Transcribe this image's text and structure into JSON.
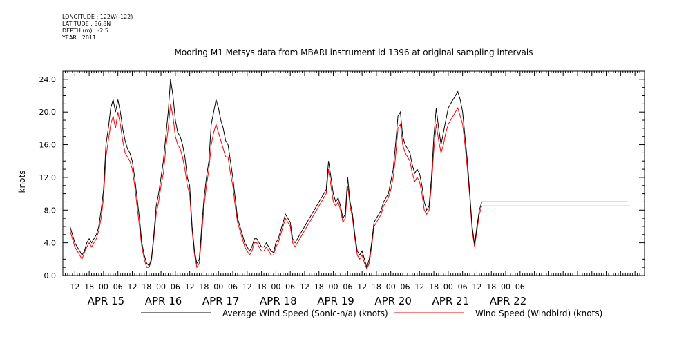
{
  "header": {
    "longitude": "LONGITUDE : 122W(-122)",
    "latitude": "LATITUDE : 36.8N",
    "depth": "DEPTH (m) : -2.5",
    "year": "YEAR : 2011"
  },
  "chart_data": {
    "type": "line",
    "title": "Mooring M1 Metsys data from MBARI instrument id 1396 at original sampling intervals",
    "ylabel": "knots",
    "xlabel": "",
    "ylim": [
      0,
      25
    ],
    "xlim": [
      "APR 14 2011 07:00",
      "APR 22 2011 10:00"
    ],
    "y_ticks": [
      "0.0",
      "4.0",
      "8.0",
      "12.0",
      "16.0",
      "20.0",
      "24.0"
    ],
    "x_hour_ticks": [
      "12",
      "18",
      "00",
      "06",
      "12",
      "18",
      "00",
      "06",
      "12",
      "18",
      "00",
      "06",
      "12",
      "18",
      "00",
      "06",
      "12",
      "18",
      "00",
      "06",
      "12",
      "18",
      "00",
      "06",
      "12",
      "18",
      "00",
      "06",
      "12",
      "18",
      "00",
      "06"
    ],
    "x_day_labels": [
      "APR 15",
      "APR 16",
      "APR 17",
      "APR 18",
      "APR 19",
      "APR 20",
      "APR 21",
      "APR 22"
    ],
    "grid": false,
    "legend": "bottom",
    "series": [
      {
        "name": "Average Wind Speed (Sonic-n/a) (knots)",
        "color": "#000000",
        "x_hours_from_apr15_0000": [
          -14,
          -13,
          -12,
          -11,
          -10,
          -9,
          -8,
          -7,
          -6,
          -5,
          -4,
          -3,
          -2,
          -1,
          0,
          1,
          2,
          3,
          4,
          5,
          6,
          7,
          8,
          9,
          10,
          11,
          12,
          13,
          14,
          15,
          16,
          17,
          18,
          19,
          20,
          21,
          22,
          23,
          24,
          25,
          26,
          27,
          28,
          29,
          30,
          31,
          32,
          33,
          34,
          35,
          36,
          37,
          38,
          39,
          40,
          41,
          42,
          43,
          44,
          45,
          46,
          47,
          48,
          49,
          50,
          51,
          52,
          53,
          54,
          55,
          56,
          57,
          58,
          59,
          60,
          61,
          62,
          63,
          64,
          65,
          66,
          67,
          68,
          69,
          70,
          71,
          72,
          73,
          74,
          75,
          76,
          77,
          78,
          79,
          80,
          81,
          82,
          83,
          84,
          85,
          86,
          87,
          88,
          89,
          90,
          91,
          92,
          93,
          94,
          95,
          96,
          97,
          98,
          99,
          100,
          101,
          102,
          103,
          104,
          105,
          106,
          107,
          108,
          109,
          110,
          111,
          112,
          113,
          114,
          115,
          116,
          117,
          118,
          119,
          120,
          121,
          122,
          123,
          124,
          125,
          126,
          127,
          128,
          129,
          130,
          131,
          132,
          133,
          134,
          135,
          136,
          137,
          138,
          139,
          140,
          141,
          142,
          143,
          144,
          145,
          146,
          147,
          148,
          149,
          150,
          151,
          152,
          153,
          154,
          155,
          156,
          157,
          158,
          159,
          160,
          161,
          162,
          163,
          164,
          165,
          166,
          167,
          168,
          169,
          170,
          171,
          172,
          173,
          174,
          175,
          176,
          177,
          178,
          179,
          180,
          181,
          182,
          183,
          184,
          185,
          186,
          187,
          188,
          189,
          190,
          191,
          192,
          193,
          194,
          195,
          196,
          197,
          198,
          199,
          200,
          201,
          202,
          203,
          204,
          205,
          206,
          207,
          208,
          209,
          210,
          211,
          212,
          213,
          214,
          215,
          216,
          217,
          218,
          219,
          220,
          221,
          222,
          223,
          224,
          225,
          226,
          227,
          228,
          229,
          230,
          231,
          232,
          233,
          234
        ],
        "values": [
          6.0,
          5.0,
          4.0,
          3.5,
          3.0,
          2.5,
          3.0,
          4.0,
          4.5,
          4.0,
          4.5,
          5.0,
          6.0,
          8.0,
          10.5,
          16.0,
          18.0,
          20.5,
          21.5,
          20.0,
          21.5,
          20.0,
          18.0,
          16.5,
          15.5,
          15.0,
          14.0,
          12.0,
          9.5,
          7.0,
          4.0,
          2.5,
          1.5,
          1.2,
          2.0,
          5.0,
          8.5,
          10.0,
          12.0,
          14.0,
          17.0,
          20.0,
          24.0,
          22.0,
          19.0,
          17.5,
          17.0,
          16.0,
          14.5,
          12.0,
          11.0,
          6.0,
          3.0,
          1.5,
          2.0,
          6.0,
          9.5,
          12.0,
          14.0,
          18.5,
          20.0,
          21.5,
          20.5,
          19.0,
          18.0,
          16.5,
          16.0,
          14.0,
          12.0,
          9.5,
          7.0,
          6.0,
          5.0,
          4.0,
          3.5,
          3.0,
          3.5,
          4.5,
          4.5,
          4.0,
          3.5,
          3.5,
          4.0,
          3.5,
          3.0,
          2.8,
          4.0,
          4.5,
          5.5,
          6.5,
          7.5,
          7.0,
          6.5,
          4.5,
          4.0,
          4.5,
          5.0,
          5.5,
          6.0,
          6.5,
          7.0,
          7.5,
          8.0,
          8.5,
          9.0,
          9.5,
          10.0,
          10.5,
          14.0,
          12.0,
          10.0,
          9.0,
          9.5,
          8.5,
          7.0,
          7.5,
          12.0,
          9.0,
          7.5,
          5.0,
          3.0,
          2.5,
          3.0,
          2.0,
          1.0,
          2.0,
          4.0,
          6.5,
          7.0,
          7.5,
          8.0,
          9.0,
          9.5,
          10.0,
          11.5,
          13.0,
          16.0,
          19.5,
          20.0,
          17.0,
          16.0,
          15.5,
          15.0,
          13.5,
          12.5,
          13.0,
          12.5,
          11.0,
          9.0,
          8.0,
          8.5,
          12.0,
          17.0,
          20.5,
          18.0,
          16.0,
          17.5,
          19.0,
          20.5,
          21.0,
          21.5,
          22.0,
          22.5,
          21.5,
          20.0,
          17.0,
          14.0,
          10.0,
          6.0,
          3.8,
          6.0,
          8.0,
          9.0,
          9.0,
          9.0,
          9.0,
          9.0,
          9.0,
          9.0,
          9.0,
          9.0,
          9.0,
          9.0,
          9.0,
          9.0,
          9.0,
          9.0,
          9.0,
          9.0,
          9.0,
          9.0,
          9.0,
          9.0,
          9.0,
          9.0,
          9.0,
          9.0,
          9.0,
          9.0,
          9.0,
          9.0,
          9.0,
          9.0,
          9.0,
          9.0,
          9.0,
          9.0,
          9.0,
          9.0,
          9.0,
          9.0,
          9.0,
          9.0,
          9.0,
          9.0,
          9.0,
          9.0,
          9.0,
          9.0,
          9.0,
          9.0,
          9.0,
          9.0,
          9.0,
          9.0,
          9.0,
          9.0,
          9.0,
          9.0,
          9.0,
          9.0,
          9.0,
          9.0,
          9.0
        ]
      },
      {
        "name": "Wind Speed (Windbird) (knots)",
        "color": "#ff0000",
        "x_hours_from_apr15_0000": [
          -14,
          -13,
          -12,
          -11,
          -10,
          -9,
          -8,
          -7,
          -6,
          -5,
          -4,
          -3,
          -2,
          -1,
          0,
          1,
          2,
          3,
          4,
          5,
          6,
          7,
          8,
          9,
          10,
          11,
          12,
          13,
          14,
          15,
          16,
          17,
          18,
          19,
          20,
          21,
          22,
          23,
          24,
          25,
          26,
          27,
          28,
          29,
          30,
          31,
          32,
          33,
          34,
          35,
          36,
          37,
          38,
          39,
          40,
          41,
          42,
          43,
          44,
          45,
          46,
          47,
          48,
          49,
          50,
          51,
          52,
          53,
          54,
          55,
          56,
          57,
          58,
          59,
          60,
          61,
          62,
          63,
          64,
          65,
          66,
          67,
          68,
          69,
          70,
          71,
          72,
          73,
          74,
          75,
          76,
          77,
          78,
          79,
          80,
          81,
          82,
          83,
          84,
          85,
          86,
          87,
          88,
          89,
          90,
          91,
          92,
          93,
          94,
          95,
          96,
          97,
          98,
          99,
          100,
          101,
          102,
          103,
          104,
          105,
          106,
          107,
          108,
          109,
          110,
          111,
          112,
          113,
          114,
          115,
          116,
          117,
          118,
          119,
          120,
          121,
          122,
          123,
          124,
          125,
          126,
          127,
          128,
          129,
          130,
          131,
          132,
          133,
          134,
          135,
          136,
          137,
          138,
          139,
          140,
          141,
          142,
          143,
          144,
          145,
          146,
          147,
          148,
          149,
          150,
          151,
          152,
          153,
          154,
          155,
          156,
          157,
          158,
          159,
          160,
          161,
          162,
          163,
          164,
          165,
          166,
          167,
          168,
          169,
          170,
          171,
          172,
          173,
          174,
          175,
          176,
          177,
          178,
          179,
          180,
          181,
          182,
          183,
          184,
          185,
          186,
          187,
          188,
          189,
          190,
          191,
          192,
          193,
          194,
          195,
          196,
          197,
          198,
          199,
          200,
          201,
          202,
          203,
          204,
          205,
          206,
          207,
          208,
          209,
          210,
          211,
          212,
          213,
          214,
          215,
          216,
          217,
          218,
          219,
          220,
          221,
          222,
          223,
          224,
          225,
          226,
          227,
          228,
          229,
          230,
          231,
          232,
          233,
          234
        ],
        "values": [
          5.5,
          4.5,
          3.5,
          3.0,
          2.5,
          2.0,
          2.8,
          3.5,
          4.0,
          3.5,
          4.0,
          4.5,
          5.5,
          7.0,
          9.5,
          14.5,
          16.5,
          18.5,
          19.5,
          18.0,
          20.0,
          18.5,
          16.5,
          15.0,
          14.5,
          14.0,
          13.0,
          11.0,
          8.5,
          6.0,
          3.5,
          2.0,
          1.0,
          1.0,
          1.8,
          4.5,
          7.5,
          9.0,
          11.0,
          12.5,
          15.5,
          18.0,
          21.0,
          19.5,
          17.0,
          16.0,
          15.5,
          14.5,
          13.0,
          11.0,
          10.0,
          5.5,
          2.5,
          1.0,
          1.5,
          5.0,
          8.5,
          11.0,
          13.0,
          16.0,
          17.5,
          18.5,
          17.5,
          16.5,
          15.5,
          14.5,
          14.5,
          12.5,
          11.0,
          8.5,
          6.5,
          5.5,
          4.5,
          3.5,
          3.0,
          2.5,
          3.0,
          4.0,
          4.0,
          3.5,
          3.0,
          3.0,
          3.5,
          3.0,
          2.5,
          2.5,
          3.5,
          4.0,
          5.0,
          6.0,
          7.0,
          6.5,
          6.0,
          4.0,
          3.5,
          4.0,
          4.5,
          5.0,
          5.5,
          6.0,
          6.5,
          7.0,
          7.5,
          8.0,
          8.5,
          9.0,
          9.5,
          10.0,
          13.0,
          11.0,
          9.0,
          8.5,
          9.0,
          8.0,
          6.5,
          7.0,
          11.0,
          8.5,
          7.0,
          4.5,
          2.5,
          2.0,
          2.5,
          1.5,
          0.8,
          1.5,
          3.5,
          6.0,
          6.5,
          7.0,
          7.5,
          8.5,
          9.0,
          9.5,
          10.5,
          12.0,
          14.5,
          18.0,
          18.5,
          16.0,
          15.0,
          14.5,
          14.0,
          12.5,
          11.5,
          12.0,
          11.5,
          10.0,
          8.0,
          7.5,
          8.0,
          11.0,
          15.5,
          18.5,
          16.5,
          15.0,
          16.0,
          17.5,
          18.5,
          19.0,
          19.5,
          20.0,
          20.5,
          19.5,
          18.5,
          16.0,
          13.0,
          9.5,
          5.5,
          3.5,
          5.5,
          7.5,
          8.5,
          8.5,
          8.5,
          8.5,
          8.5,
          8.5,
          8.5,
          8.5,
          8.5,
          8.5,
          8.5,
          8.5,
          8.5,
          8.5,
          8.5,
          8.5,
          8.5,
          8.5,
          8.5,
          8.5,
          8.5,
          8.5,
          8.5,
          8.5,
          8.5,
          8.5,
          8.5,
          8.5,
          8.5,
          8.5,
          8.5,
          8.5,
          8.5,
          8.5,
          8.5,
          8.5,
          8.5,
          8.5,
          8.5,
          8.5,
          8.5,
          8.5,
          8.5,
          8.5,
          8.5,
          8.5,
          8.5,
          8.5,
          8.5,
          8.5,
          8.5,
          8.5,
          8.5,
          8.5,
          8.5,
          8.5,
          8.5,
          8.5,
          8.5,
          8.5,
          8.5,
          8.5,
          8.5
        ]
      }
    ]
  }
}
